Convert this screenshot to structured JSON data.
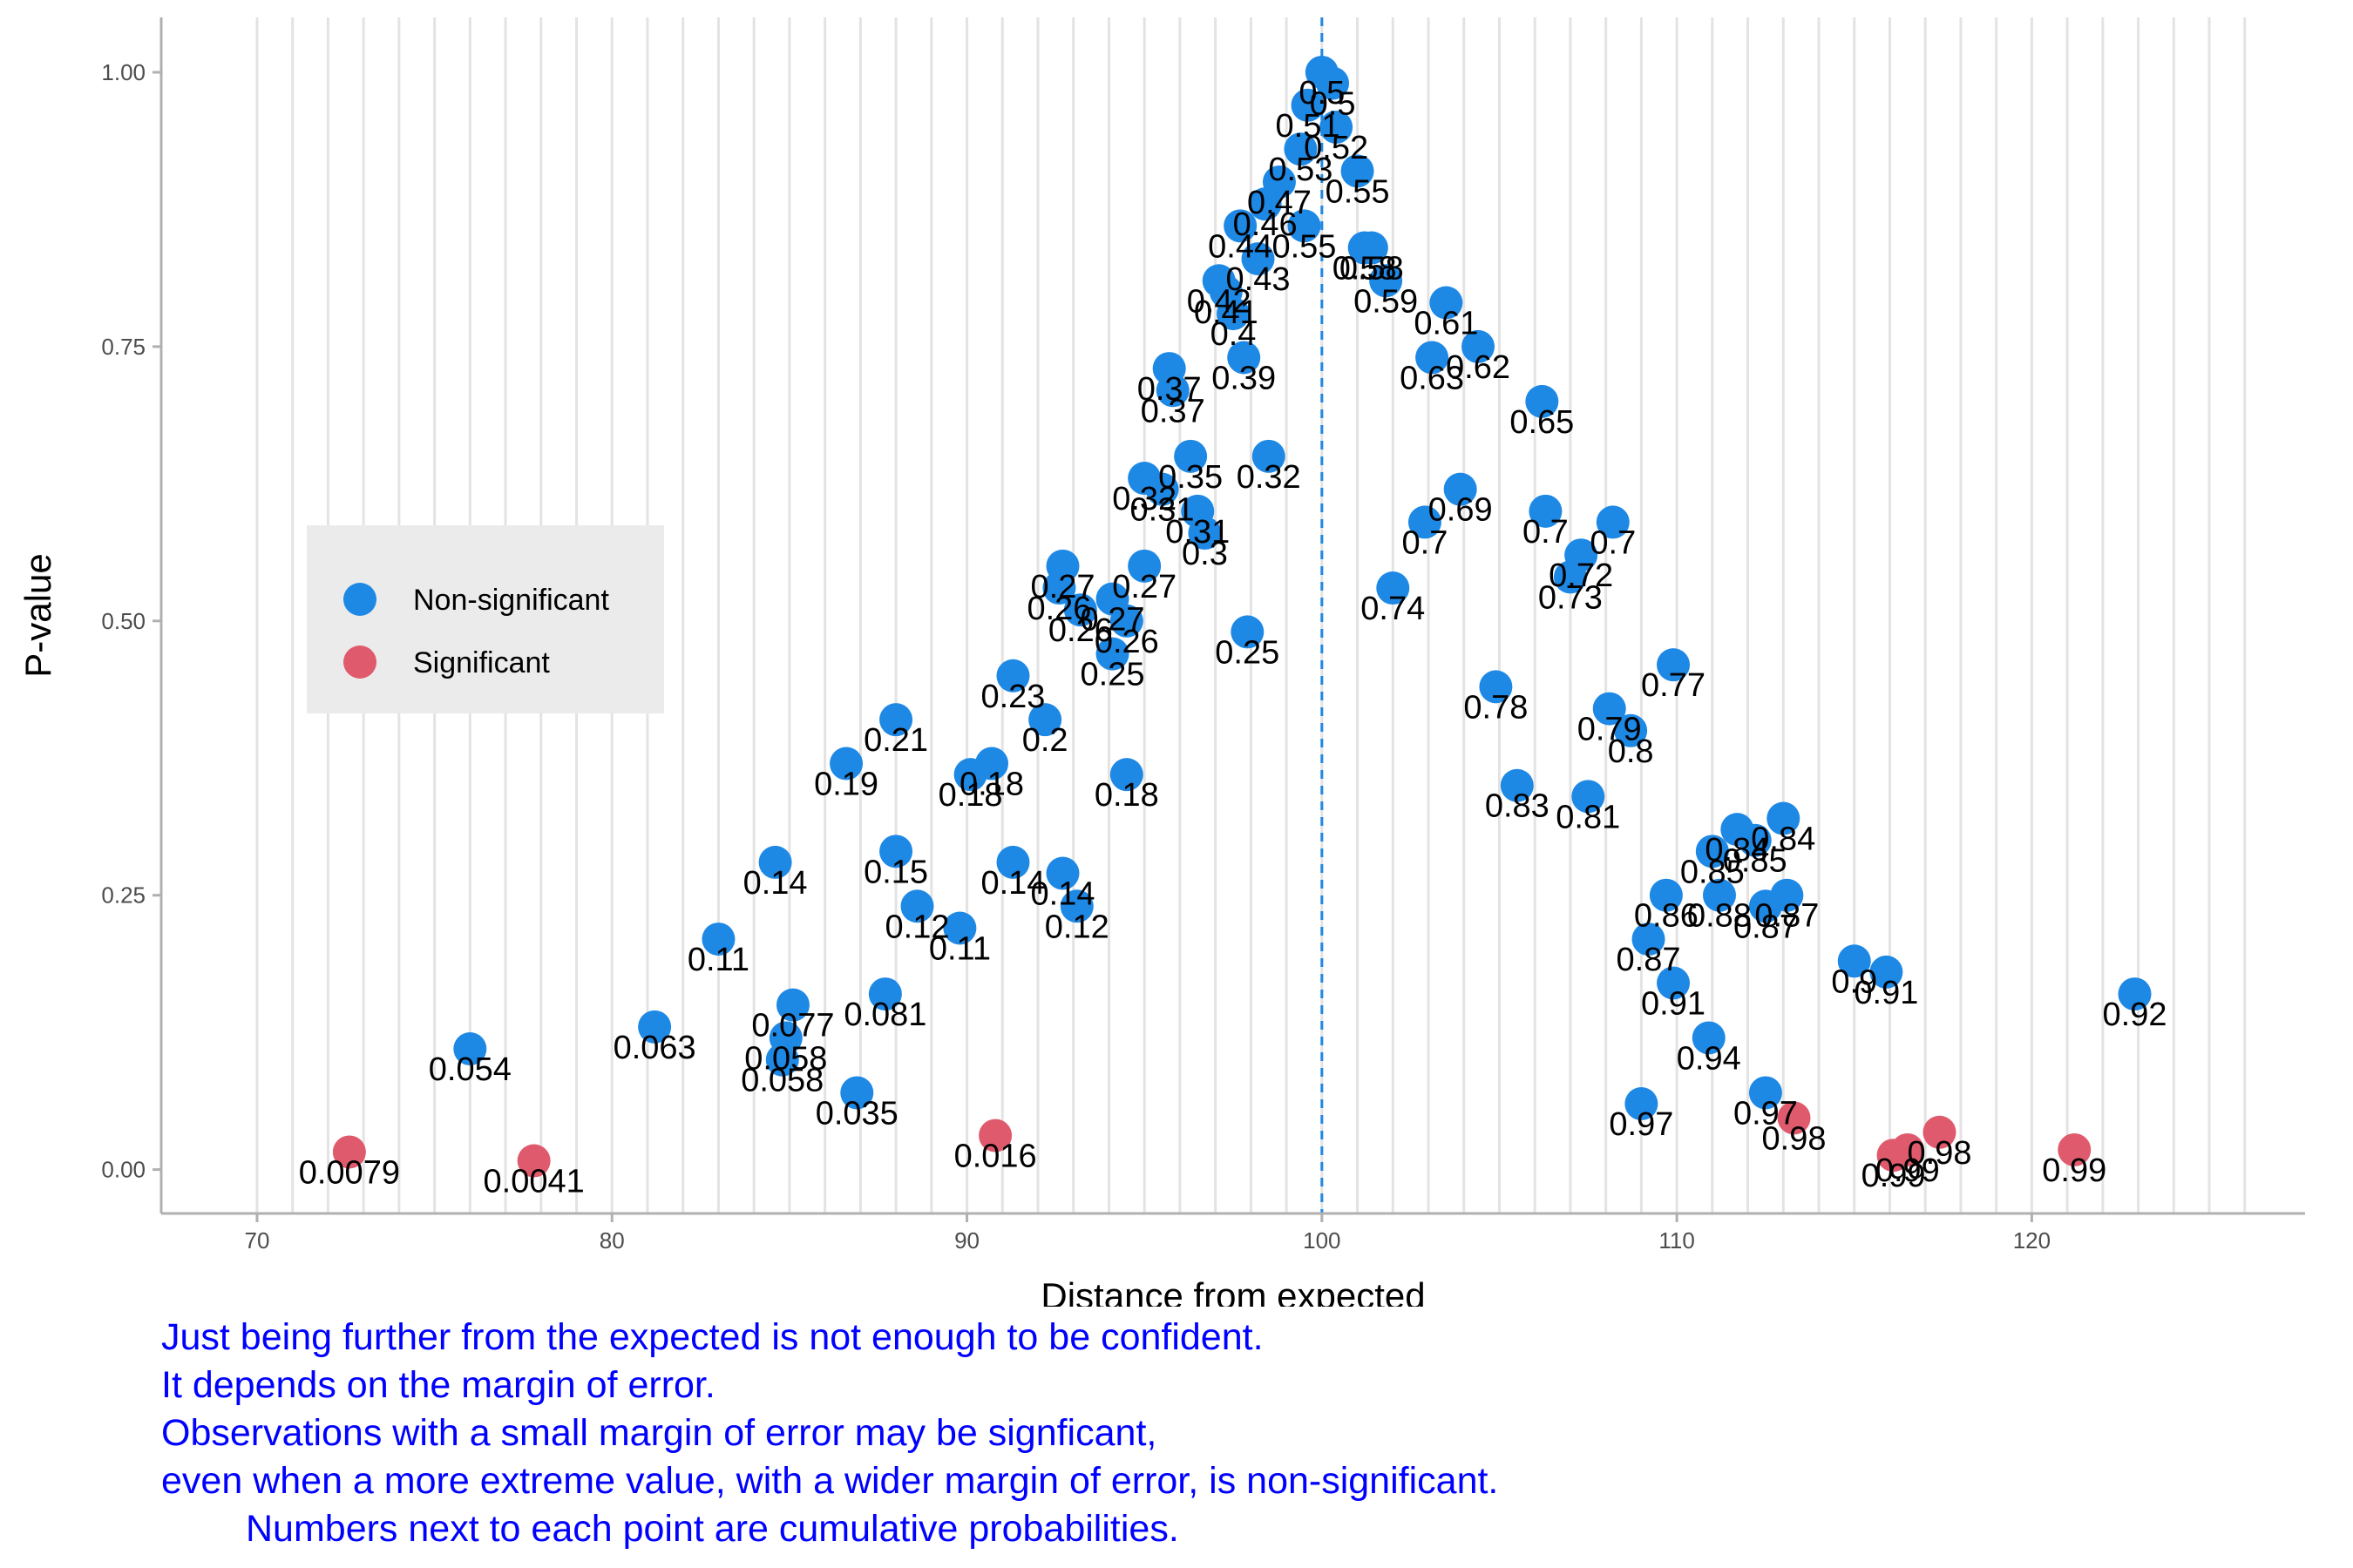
{
  "chart_data": {
    "type": "scatter",
    "xlabel": "Distance from expected",
    "ylabel": "P-value",
    "xlim": [
      67.3,
      127.7
    ],
    "ylim": [
      -0.04,
      1.05
    ],
    "x_ticks": [
      70,
      80,
      90,
      100,
      110,
      120
    ],
    "x_tick_labels": [
      "70",
      "80",
      "90",
      "100",
      "110",
      "120"
    ],
    "y_ticks": [
      0,
      0.25,
      0.5,
      0.75,
      1.0
    ],
    "y_tick_labels": [
      "0.00",
      "0.25",
      "0.50",
      "0.75",
      "1.00"
    ],
    "grid": "vertical lines at observation positions",
    "reference_line": {
      "x": 100,
      "style": "dashed",
      "color": "#1E88E5"
    },
    "legend": {
      "placement": "left",
      "entries": [
        {
          "name": "Non-significant",
          "color": "#1E88E5"
        },
        {
          "name": "Significant",
          "color": "#E05A6D"
        }
      ]
    },
    "series": [
      {
        "name": "Non-significant",
        "color": "#1E88E5",
        "points": [
          {
            "x": 100.0,
            "y": 1.0,
            "label": "0.5"
          },
          {
            "x": 100.3,
            "y": 0.99,
            "label": "0.5"
          },
          {
            "x": 99.6,
            "y": 0.97,
            "label": "0.51"
          },
          {
            "x": 100.4,
            "y": 0.95,
            "label": "0.52"
          },
          {
            "x": 99.4,
            "y": 0.93,
            "label": "0.53"
          },
          {
            "x": 101.0,
            "y": 0.91,
            "label": "0.55"
          },
          {
            "x": 98.8,
            "y": 0.9,
            "label": "0.47"
          },
          {
            "x": 98.4,
            "y": 0.88,
            "label": "0.46"
          },
          {
            "x": 99.5,
            "y": 0.86,
            "label": "0.55"
          },
          {
            "x": 97.7,
            "y": 0.86,
            "label": "0.44"
          },
          {
            "x": 101.2,
            "y": 0.84,
            "label": "0.58"
          },
          {
            "x": 101.4,
            "y": 0.84,
            "label": "0.58"
          },
          {
            "x": 98.2,
            "y": 0.83,
            "label": "0.43"
          },
          {
            "x": 97.1,
            "y": 0.81,
            "label": "0.42"
          },
          {
            "x": 101.8,
            "y": 0.81,
            "label": "0.59"
          },
          {
            "x": 97.3,
            "y": 0.8,
            "label": "0.41"
          },
          {
            "x": 97.5,
            "y": 0.78,
            "label": "0.4"
          },
          {
            "x": 103.5,
            "y": 0.79,
            "label": "0.61"
          },
          {
            "x": 104.4,
            "y": 0.75,
            "label": "0.62"
          },
          {
            "x": 103.1,
            "y": 0.74,
            "label": "0.63"
          },
          {
            "x": 97.8,
            "y": 0.74,
            "label": "0.39"
          },
          {
            "x": 95.7,
            "y": 0.73,
            "label": "0.37"
          },
          {
            "x": 95.8,
            "y": 0.71,
            "label": "0.37"
          },
          {
            "x": 106.2,
            "y": 0.7,
            "label": "0.65"
          },
          {
            "x": 96.3,
            "y": 0.65,
            "label": "0.35"
          },
          {
            "x": 98.5,
            "y": 0.65,
            "label": "0.32"
          },
          {
            "x": 95.0,
            "y": 0.63,
            "label": "0.32"
          },
          {
            "x": 95.5,
            "y": 0.62,
            "label": "0.31"
          },
          {
            "x": 103.9,
            "y": 0.62,
            "label": "0.69"
          },
          {
            "x": 96.5,
            "y": 0.6,
            "label": "0.31"
          },
          {
            "x": 106.3,
            "y": 0.6,
            "label": "0.7"
          },
          {
            "x": 108.2,
            "y": 0.59,
            "label": "0.7"
          },
          {
            "x": 102.9,
            "y": 0.59,
            "label": "0.7"
          },
          {
            "x": 96.7,
            "y": 0.58,
            "label": "0.3"
          },
          {
            "x": 107.3,
            "y": 0.56,
            "label": "0.72"
          },
          {
            "x": 95.0,
            "y": 0.55,
            "label": "0.27"
          },
          {
            "x": 92.7,
            "y": 0.55,
            "label": "0.27"
          },
          {
            "x": 107.0,
            "y": 0.54,
            "label": "0.73"
          },
          {
            "x": 102.0,
            "y": 0.53,
            "label": "0.74"
          },
          {
            "x": 92.6,
            "y": 0.53,
            "label": "0.26"
          },
          {
            "x": 94.1,
            "y": 0.52,
            "label": "0.27"
          },
          {
            "x": 93.2,
            "y": 0.51,
            "label": "0.26"
          },
          {
            "x": 94.5,
            "y": 0.5,
            "label": "0.26"
          },
          {
            "x": 97.9,
            "y": 0.49,
            "label": "0.25"
          },
          {
            "x": 94.1,
            "y": 0.47,
            "label": "0.25"
          },
          {
            "x": 109.9,
            "y": 0.46,
            "label": "0.77"
          },
          {
            "x": 91.3,
            "y": 0.45,
            "label": "0.23"
          },
          {
            "x": 104.9,
            "y": 0.44,
            "label": "0.78"
          },
          {
            "x": 108.1,
            "y": 0.42,
            "label": "0.79"
          },
          {
            "x": 92.2,
            "y": 0.41,
            "label": "0.2"
          },
          {
            "x": 88.0,
            "y": 0.41,
            "label": "0.21"
          },
          {
            "x": 108.7,
            "y": 0.4,
            "label": "0.8"
          },
          {
            "x": 86.6,
            "y": 0.37,
            "label": "0.19"
          },
          {
            "x": 90.7,
            "y": 0.37,
            "label": "0.18"
          },
          {
            "x": 94.5,
            "y": 0.36,
            "label": "0.18"
          },
          {
            "x": 90.1,
            "y": 0.36,
            "label": "0.18"
          },
          {
            "x": 105.5,
            "y": 0.35,
            "label": "0.83"
          },
          {
            "x": 107.5,
            "y": 0.34,
            "label": "0.81"
          },
          {
            "x": 113.0,
            "y": 0.32,
            "label": "0.84"
          },
          {
            "x": 111.7,
            "y": 0.31,
            "label": "0.84"
          },
          {
            "x": 112.2,
            "y": 0.3,
            "label": "0.85"
          },
          {
            "x": 88.0,
            "y": 0.29,
            "label": "0.15"
          },
          {
            "x": 111.0,
            "y": 0.29,
            "label": "0.85"
          },
          {
            "x": 91.3,
            "y": 0.28,
            "label": "0.14"
          },
          {
            "x": 84.6,
            "y": 0.28,
            "label": "0.14"
          },
          {
            "x": 92.7,
            "y": 0.27,
            "label": "0.14"
          },
          {
            "x": 109.7,
            "y": 0.25,
            "label": "0.86"
          },
          {
            "x": 113.1,
            "y": 0.25,
            "label": "0.87"
          },
          {
            "x": 111.2,
            "y": 0.25,
            "label": "0.88"
          },
          {
            "x": 93.1,
            "y": 0.24,
            "label": "0.12"
          },
          {
            "x": 88.6,
            "y": 0.24,
            "label": "0.12"
          },
          {
            "x": 112.5,
            "y": 0.24,
            "label": "0.87"
          },
          {
            "x": 89.8,
            "y": 0.22,
            "label": "0.11"
          },
          {
            "x": 83.0,
            "y": 0.21,
            "label": "0.11"
          },
          {
            "x": 109.2,
            "y": 0.21,
            "label": "0.87"
          },
          {
            "x": 115.0,
            "y": 0.19,
            "label": "0.9"
          },
          {
            "x": 115.9,
            "y": 0.18,
            "label": "0.91"
          },
          {
            "x": 109.9,
            "y": 0.17,
            "label": "0.91"
          },
          {
            "x": 87.7,
            "y": 0.16,
            "label": "0.081"
          },
          {
            "x": 122.9,
            "y": 0.16,
            "label": "0.92"
          },
          {
            "x": 85.1,
            "y": 0.15,
            "label": "0.077"
          },
          {
            "x": 81.2,
            "y": 0.13,
            "label": "0.063"
          },
          {
            "x": 110.9,
            "y": 0.12,
            "label": "0.94"
          },
          {
            "x": 84.9,
            "y": 0.12,
            "label": "0.058"
          },
          {
            "x": 76.0,
            "y": 0.11,
            "label": "0.054"
          },
          {
            "x": 84.8,
            "y": 0.1,
            "label": "0.058"
          },
          {
            "x": 86.9,
            "y": 0.07,
            "label": "0.035"
          },
          {
            "x": 112.5,
            "y": 0.07,
            "label": "0.97"
          },
          {
            "x": 109.0,
            "y": 0.06,
            "label": "0.97"
          }
        ]
      },
      {
        "name": "Significant",
        "color": "#E05A6D",
        "points": [
          {
            "x": 72.6,
            "y": 0.016,
            "label": "0.0079"
          },
          {
            "x": 77.8,
            "y": 0.008,
            "label": "0.0041"
          },
          {
            "x": 90.8,
            "y": 0.031,
            "label": "0.016"
          },
          {
            "x": 113.3,
            "y": 0.047,
            "label": "0.98"
          },
          {
            "x": 117.4,
            "y": 0.034,
            "label": "0.98"
          },
          {
            "x": 116.5,
            "y": 0.018,
            "label": "0.99"
          },
          {
            "x": 116.1,
            "y": 0.013,
            "label": "0.99"
          },
          {
            "x": 121.2,
            "y": 0.018,
            "label": "0.99"
          }
        ]
      }
    ],
    "caption_lines": [
      "Just being further from the expected is not enough to be confident.",
      "It depends on the margin of error.",
      "Observations with a small margin of error may be signficant,",
      "even when a more extreme value, with a wider margin of error, is non-significant.",
      "Numbers next to each point are cumulative probabilities."
    ]
  }
}
